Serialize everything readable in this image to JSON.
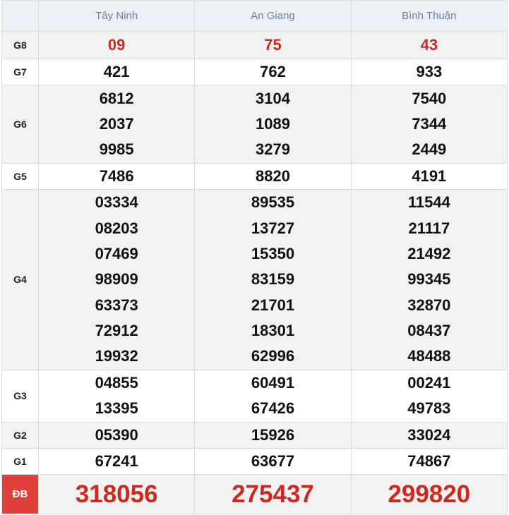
{
  "table": {
    "header": [
      "Tây Ninh",
      "An Giang",
      "Bình Thuận"
    ],
    "rows": [
      {
        "label": "G8",
        "values": [
          [
            "09"
          ],
          [
            "75"
          ],
          [
            "43"
          ]
        ]
      },
      {
        "label": "G7",
        "values": [
          [
            "421"
          ],
          [
            "762"
          ],
          [
            "933"
          ]
        ]
      },
      {
        "label": "G6",
        "values": [
          [
            "6812",
            "2037",
            "9985"
          ],
          [
            "3104",
            "1089",
            "3279"
          ],
          [
            "7540",
            "7344",
            "2449"
          ]
        ]
      },
      {
        "label": "G5",
        "values": [
          [
            "7486"
          ],
          [
            "8820"
          ],
          [
            "4191"
          ]
        ]
      },
      {
        "label": "G4",
        "values": [
          [
            "03334",
            "08203",
            "07469",
            "98909",
            "63373",
            "72912",
            "19932"
          ],
          [
            "89535",
            "13727",
            "15350",
            "83159",
            "21701",
            "18301",
            "62996"
          ],
          [
            "11544",
            "21117",
            "21492",
            "99345",
            "32870",
            "08437",
            "48488"
          ]
        ]
      },
      {
        "label": "G3",
        "values": [
          [
            "04855",
            "13395"
          ],
          [
            "60491",
            "67426"
          ],
          [
            "00241",
            "49783"
          ]
        ]
      },
      {
        "label": "G2",
        "values": [
          [
            "05390"
          ],
          [
            "15926"
          ],
          [
            "33024"
          ]
        ]
      },
      {
        "label": "G1",
        "values": [
          [
            "67241"
          ],
          [
            "63677"
          ],
          [
            "74867"
          ]
        ]
      },
      {
        "label": "ĐB",
        "values": [
          [
            "318056"
          ],
          [
            "275437"
          ],
          [
            "299820"
          ]
        ]
      }
    ]
  }
}
